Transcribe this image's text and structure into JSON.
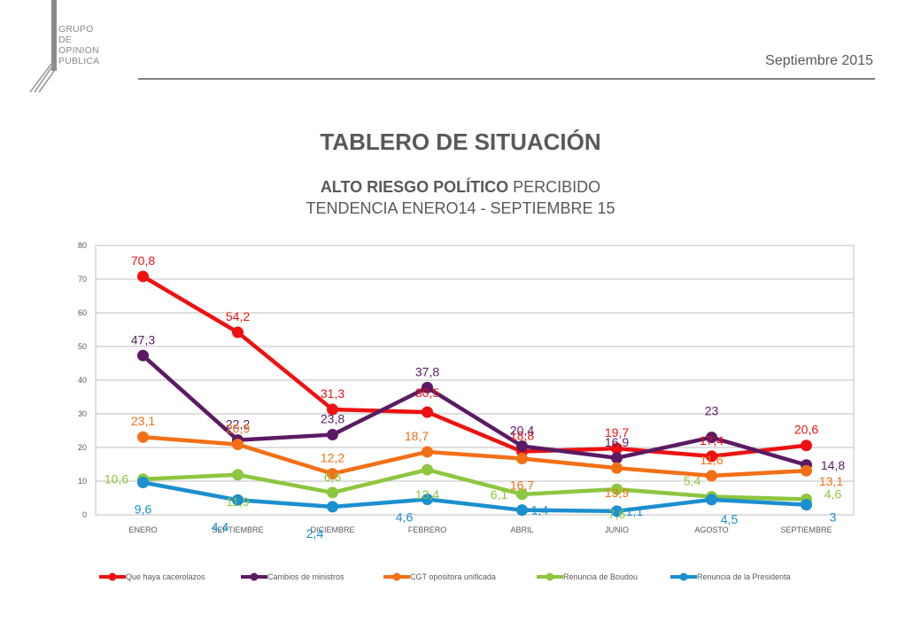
{
  "brand": {
    "lines": [
      "GRUPO",
      "DE",
      "OPINION",
      "PUBLICA"
    ]
  },
  "date": "Septiembre 2015",
  "title": "TABLERO DE SITUACIÓN",
  "subtitle_bold": "ALTO RIESGO POLÍTICO",
  "subtitle_rest": " PERCIBIDO",
  "subtitle2": "TENDENCIA ENERO14 -  SEPTIEMBRE 15",
  "chart_data": {
    "type": "line",
    "categories": [
      "ENERO",
      "SEPTIEMBRE",
      "DICIEMBRE",
      "FEBRERO",
      "ABRIL",
      "JUNIO",
      "AGOSTO",
      "SEPTIEMBRE"
    ],
    "ylim": [
      0,
      80
    ],
    "yticks": [
      0,
      10,
      20,
      30,
      40,
      50,
      60,
      70,
      80
    ],
    "grid": true,
    "legend_position": "bottom",
    "series": [
      {
        "name": "Que haya cacerolazos",
        "color": "#ee1111",
        "values": [
          70.8,
          54.2,
          31.3,
          30.5,
          18.8,
          19.7,
          17.4,
          20.6
        ],
        "labels": [
          "70,8",
          "54,2",
          "31,3",
          "30,5",
          "18,8",
          "19,7",
          "17,4",
          "20,6"
        ]
      },
      {
        "name": "Cambios de ministros",
        "color": "#5b1a63",
        "values": [
          47.3,
          22.2,
          23.8,
          37.8,
          20.4,
          16.9,
          23,
          14.8
        ],
        "labels": [
          "47,3",
          "22,2",
          "23,8",
          "37,8",
          "20,4",
          "16,9",
          "23",
          "14,8"
        ]
      },
      {
        "name": "CGT opositora unificada",
        "color": "#f36f16",
        "values": [
          23.1,
          20.9,
          12.2,
          18.7,
          16.7,
          13.9,
          11.6,
          13.1
        ],
        "labels": [
          "23,1",
          "20,9",
          "12,2",
          "18,7",
          "16,7",
          "13,9",
          "11,6",
          "13,1"
        ]
      },
      {
        "name": "Renuncia de Boudou",
        "color": "#8dc63f",
        "values": [
          10.6,
          11.9,
          6.6,
          13.4,
          6.1,
          7.6,
          5.4,
          4.6
        ],
        "labels": [
          "10,6",
          "11,9",
          "6,6",
          "13,4",
          "6,1",
          "7,6",
          "5,4",
          "4,6"
        ]
      },
      {
        "name": "Renuncia de la Presidenta",
        "color": "#1b8fcf",
        "values": [
          9.6,
          4.4,
          2.4,
          4.6,
          1.4,
          1.1,
          4.5,
          3
        ],
        "labels": [
          "9,6",
          "4,4",
          "2,4",
          "4,6",
          "1,4",
          "1,1",
          "4,5",
          "3"
        ]
      }
    ]
  }
}
